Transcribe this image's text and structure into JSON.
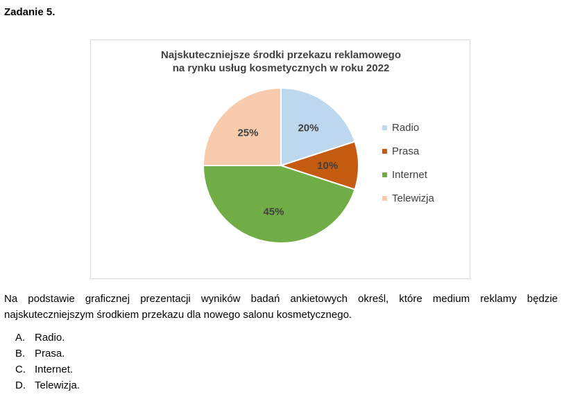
{
  "task": {
    "title": "Zadanie 5."
  },
  "chart_data": {
    "type": "pie",
    "title_lines": [
      "Najskuteczniejsze środki przekazu reklamowego",
      "na rynku usług kosmetycznych w roku 2022"
    ],
    "categories": [
      "Radio",
      "Prasa",
      "Internet",
      "Telewizja"
    ],
    "values": [
      20,
      10,
      45,
      25
    ],
    "data_labels": [
      "20%",
      "10%",
      "45%",
      "25%"
    ],
    "colors": [
      "#bdd7ee",
      "#c55a11",
      "#70ad47",
      "#f8cbad"
    ],
    "start_angle": "top (12 o'clock), clockwise",
    "legend_position": "right"
  },
  "question": {
    "text": "Na podstawie graficznej prezentacji wyników badań ankietowych określ, które medium reklamy będzie najskuteczniejszym środkiem przekazu dla nowego salonu kosmetycznego."
  },
  "answers": [
    {
      "letter": "A.",
      "text": "Radio."
    },
    {
      "letter": "B.",
      "text": "Prasa."
    },
    {
      "letter": "C.",
      "text": "Internet."
    },
    {
      "letter": "D.",
      "text": "Telewizja."
    }
  ]
}
